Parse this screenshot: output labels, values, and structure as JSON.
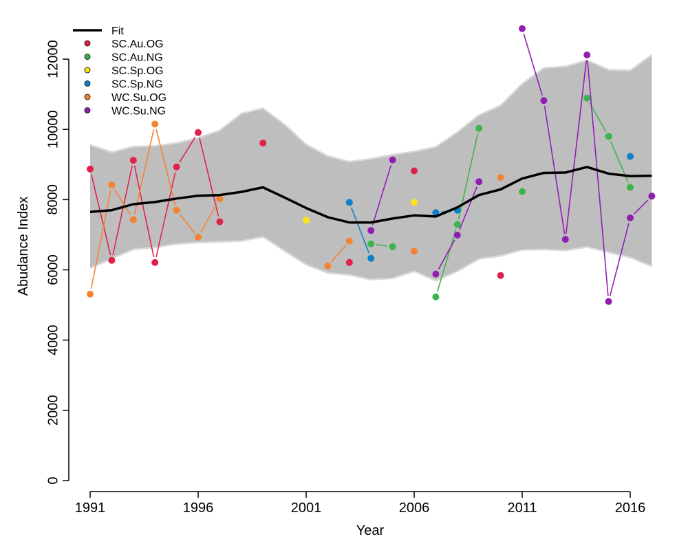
{
  "chart_data": {
    "type": "line",
    "title": "",
    "xlabel": "Year",
    "ylabel": "Abudance Index",
    "xlim": [
      1991,
      2017
    ],
    "ylim": [
      0,
      12000
    ],
    "xticks": [
      1991,
      1996,
      2001,
      2006,
      2011,
      2016
    ],
    "yticks": [
      0,
      2000,
      4000,
      6000,
      8000,
      10000,
      12000
    ],
    "grid": false,
    "legend_position": "top-left",
    "fit": {
      "name": "Fit",
      "color": "#000000",
      "x": [
        1991,
        1992,
        1993,
        1994,
        1995,
        1996,
        1997,
        1998,
        1999,
        2000,
        2001,
        2002,
        2003,
        2004,
        2005,
        2006,
        2007,
        2008,
        2009,
        2010,
        2011,
        2012,
        2013,
        2014,
        2015,
        2016,
        2017
      ],
      "y": [
        7650,
        7700,
        7870,
        7930,
        8030,
        8110,
        8130,
        8220,
        8350,
        8060,
        7760,
        7500,
        7350,
        7350,
        7460,
        7550,
        7520,
        7780,
        8130,
        8290,
        8600,
        8760,
        8770,
        8930,
        8740,
        8670,
        8680
      ],
      "lower": [
        6050,
        6320,
        6580,
        6640,
        6740,
        6780,
        6800,
        6820,
        6940,
        6540,
        6150,
        5910,
        5860,
        5720,
        5760,
        5960,
        5690,
        5960,
        6310,
        6400,
        6570,
        6580,
        6550,
        6650,
        6500,
        6350,
        6100
      ],
      "upper": [
        9560,
        9350,
        9510,
        9530,
        9610,
        9760,
        9970,
        10450,
        10600,
        10140,
        9570,
        9240,
        9080,
        9160,
        9280,
        9370,
        9500,
        9920,
        10410,
        10680,
        11300,
        11750,
        11790,
        11970,
        11700,
        11680,
        12120
      ],
      "band_color": "#bebebe",
      "band_edge_color": "#d9d9d9"
    },
    "series": [
      {
        "name": "SC.Au.OG",
        "color": "#e0224b",
        "points": [
          [
            1991,
            8870
          ],
          [
            1992,
            6270
          ],
          [
            1993,
            9120
          ],
          [
            1994,
            6210
          ],
          [
            1995,
            8930
          ],
          [
            1996,
            9910
          ],
          [
            1997,
            7370
          ],
          [
            1999,
            9610
          ],
          [
            2003,
            6210
          ],
          [
            2006,
            8820
          ],
          [
            2010,
            5840
          ]
        ]
      },
      {
        "name": "SC.Au.NG",
        "color": "#3cb44b",
        "points": [
          [
            2004,
            6740
          ],
          [
            2005,
            6660
          ],
          [
            2007,
            5230
          ],
          [
            2008,
            7290
          ],
          [
            2009,
            10030
          ],
          [
            2011,
            8230
          ],
          [
            2014,
            10890
          ],
          [
            2015,
            9800
          ],
          [
            2016,
            8350
          ]
        ]
      },
      {
        "name": "SC.Sp.OG",
        "color": "#ffe119",
        "points": [
          [
            2001,
            7410
          ],
          [
            2006,
            7920
          ]
        ]
      },
      {
        "name": "SC.Sp.NG",
        "color": "#0d82c8",
        "points": [
          [
            2003,
            7920
          ],
          [
            2004,
            6330
          ],
          [
            2007,
            7630
          ],
          [
            2008,
            7700
          ],
          [
            2016,
            9230
          ]
        ]
      },
      {
        "name": "WC.Su.OG",
        "color": "#f58231",
        "points": [
          [
            1991,
            5310
          ],
          [
            1992,
            8420
          ],
          [
            1993,
            7430
          ],
          [
            1994,
            10150
          ],
          [
            1995,
            7700
          ],
          [
            1996,
            6930
          ],
          [
            1997,
            8020
          ],
          [
            2002,
            6110
          ],
          [
            2003,
            6820
          ],
          [
            2006,
            6530
          ],
          [
            2010,
            8630
          ]
        ]
      },
      {
        "name": "WC.Su.NG",
        "color": "#911eb4",
        "points": [
          [
            2004,
            7120
          ],
          [
            2005,
            9130
          ],
          [
            2007,
            5880
          ],
          [
            2008,
            6990
          ],
          [
            2009,
            8510
          ],
          [
            2011,
            12870
          ],
          [
            2012,
            10820
          ],
          [
            2013,
            6870
          ],
          [
            2014,
            12120
          ],
          [
            2015,
            5100
          ],
          [
            2016,
            7480
          ],
          [
            2017,
            8100
          ]
        ]
      }
    ]
  }
}
